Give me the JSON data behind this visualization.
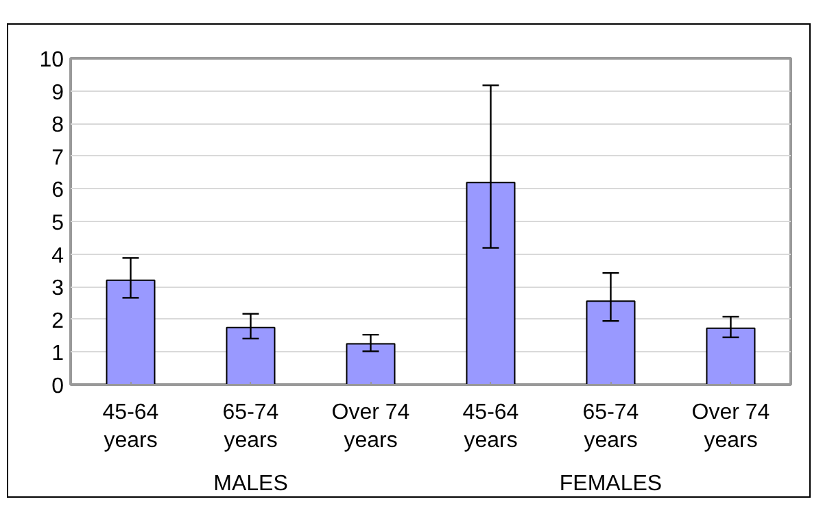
{
  "chart_data": {
    "type": "bar",
    "categories": [
      "45-64 years",
      "65-74 years",
      "Over 74 years",
      "45-64 years",
      "65-74 years",
      "Over 74 years"
    ],
    "values": [
      3.2,
      1.75,
      1.25,
      6.19,
      2.56,
      1.73
    ],
    "errors": [
      [
        2.66,
        3.88
      ],
      [
        1.41,
        2.17
      ],
      [
        1.02,
        1.53
      ],
      [
        4.19,
        9.17
      ],
      [
        1.95,
        3.42
      ],
      [
        1.45,
        2.08
      ]
    ],
    "color": "#9999ff",
    "ylim": [
      0,
      10
    ],
    "yticks": [
      0,
      1,
      2,
      3,
      4,
      5,
      6,
      7,
      8,
      9,
      10
    ],
    "grid": "y",
    "annotations": [
      "MALES",
      "FEMALES"
    ]
  }
}
